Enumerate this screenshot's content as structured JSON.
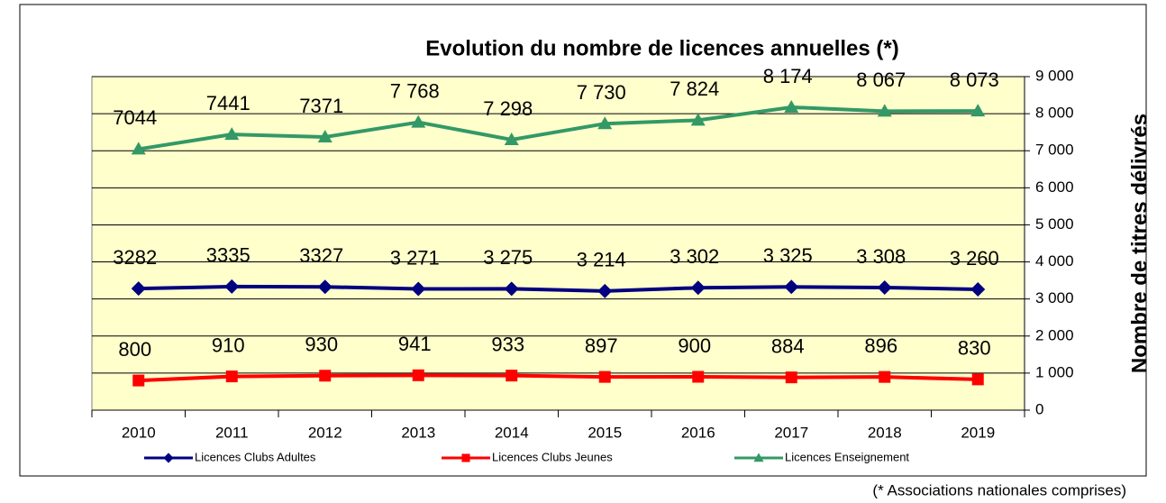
{
  "chart_data": {
    "type": "line",
    "title": "Evolution du nombre de licences annuelles (*)",
    "y_label": "Nombre de titres délivrés",
    "footnote": "(* Associations nationales comprises)",
    "categories": [
      "2010",
      "2011",
      "2012",
      "2013",
      "2014",
      "2015",
      "2016",
      "2017",
      "2018",
      "2019"
    ],
    "series": [
      {
        "name": "Licences Clubs Adultes",
        "color": "#000080",
        "marker": "diamond",
        "values": [
          3282,
          3335,
          3327,
          3271,
          3275,
          3214,
          3302,
          3325,
          3308,
          3260
        ],
        "value_labels": [
          "3282",
          "3335",
          "3327",
          "3 271",
          "3 275",
          "3 214",
          "3 302",
          "3 325",
          "3 308",
          "3 260"
        ]
      },
      {
        "name": "Licences Clubs Jeunes",
        "color": "#ff0000",
        "marker": "square",
        "values": [
          800,
          910,
          930,
          941,
          933,
          897,
          900,
          884,
          896,
          830
        ]
      },
      {
        "name": "Licences Enseignement",
        "color": "#339966",
        "marker": "triangle",
        "values": [
          7044,
          7441,
          7371,
          7768,
          7298,
          7730,
          7824,
          8174,
          8067,
          8073
        ],
        "value_labels": [
          "7044",
          "7441",
          "7371",
          "7 768",
          "7 298",
          "7 730",
          "7 824",
          "8 174",
          "8 067",
          "8 073"
        ]
      }
    ],
    "ylim": [
      0,
      9000
    ],
    "yticks": [
      0,
      {
        "value": 1000,
        "label": "1 000"
      },
      {
        "value": 2000,
        "label": "2 000"
      },
      {
        "value": 3000,
        "label": "3 000"
      },
      {
        "value": 4000,
        "label": "4 000"
      },
      {
        "value": 5000,
        "label": "5 000"
      },
      {
        "value": 6000,
        "label": "6 000"
      },
      {
        "value": 7000,
        "label": "7 000"
      },
      {
        "value": 8000,
        "label": "8 000"
      },
      {
        "value": 9000,
        "label": "9 000"
      }
    ],
    "y_axis_side": "right",
    "grid": true,
    "legend": "bottom",
    "plot_background": "#ffffcc"
  }
}
